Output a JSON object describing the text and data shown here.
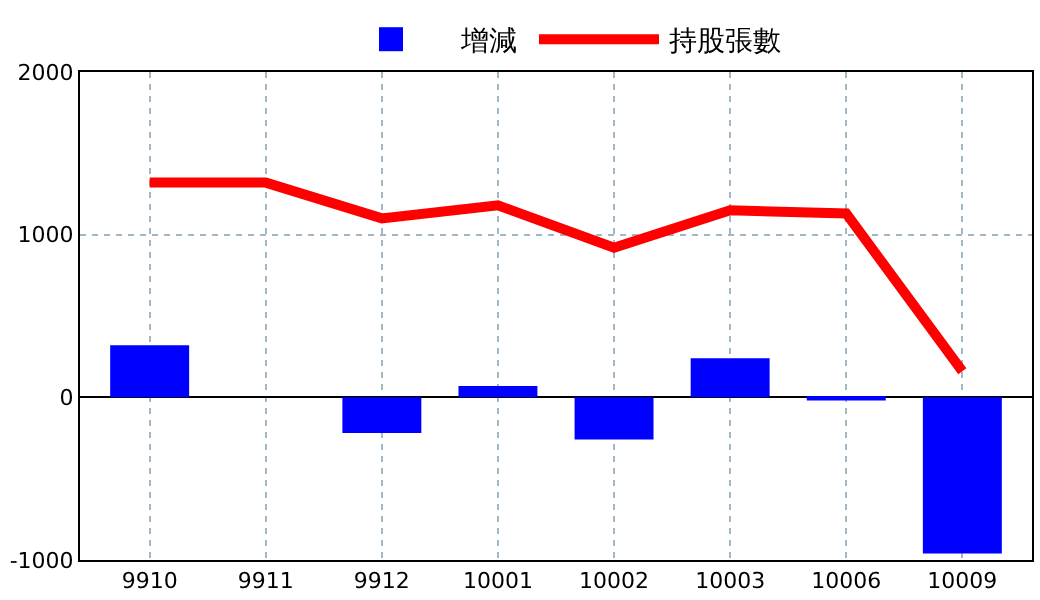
{
  "chart_data": {
    "type": "bar",
    "categories": [
      "9910",
      "9911",
      "9912",
      "10001",
      "10002",
      "10003",
      "10006",
      "10009"
    ],
    "series": [
      {
        "name": "增減",
        "color": "#0000ff",
        "values": [
          320,
          0,
          -220,
          70,
          -260,
          240,
          -20,
          -960
        ]
      },
      {
        "name": "持股張數",
        "type": "line",
        "color": "#ff0000",
        "values": [
          1320,
          1320,
          1100,
          1180,
          920,
          1150,
          1130,
          160
        ]
      }
    ],
    "ylim": [
      -1000,
      2000
    ],
    "yticks": [
      -1000,
      0,
      1000,
      2000
    ],
    "grid": true,
    "legend": "top",
    "marker": "none",
    "line_style": "solid"
  }
}
